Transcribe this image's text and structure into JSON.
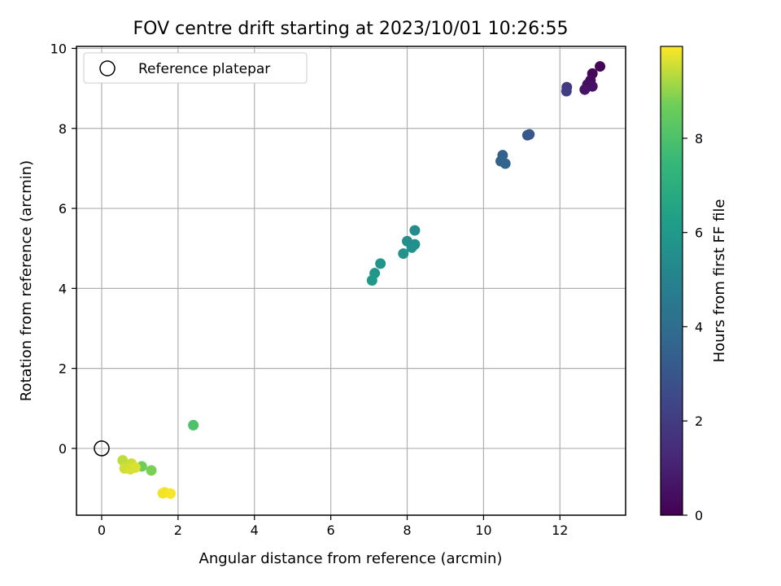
{
  "chart_data": {
    "type": "scatter",
    "title": "FOV centre drift starting at 2023/10/01 10:26:55",
    "xlabel": "Angular distance from reference (arcmin)",
    "ylabel": "Rotation from reference (arcmin)",
    "xlim": [
      -0.66,
      13.72
    ],
    "ylim": [
      -1.67,
      10.05
    ],
    "x_ticks": [
      0,
      2,
      4,
      6,
      8,
      10,
      12
    ],
    "y_ticks": [
      0,
      2,
      4,
      6,
      8,
      10
    ],
    "x_tick_labels": [
      "0",
      "2",
      "4",
      "6",
      "8",
      "10",
      "12"
    ],
    "y_tick_labels": [
      "0",
      "2",
      "4",
      "6",
      "8",
      "10"
    ],
    "grid": true,
    "legend": {
      "position": "top-left",
      "entries": [
        "Reference platepar"
      ]
    },
    "reference_point": {
      "x": 0,
      "y": 0
    },
    "colorbar": {
      "label": "Hours from first FF file",
      "colormap": "viridis",
      "range": [
        0,
        9.95
      ],
      "ticks": [
        0,
        2,
        4,
        6,
        8
      ],
      "tick_labels": [
        "0",
        "2",
        "4",
        "6",
        "8"
      ]
    },
    "points": [
      {
        "x": 13.05,
        "y": 9.55,
        "hours": 0.1
      },
      {
        "x": 12.85,
        "y": 9.37,
        "hours": 0.2
      },
      {
        "x": 12.8,
        "y": 9.2,
        "hours": 0.3
      },
      {
        "x": 12.72,
        "y": 9.1,
        "hours": 0.4
      },
      {
        "x": 12.85,
        "y": 9.05,
        "hours": 0.5
      },
      {
        "x": 12.65,
        "y": 8.97,
        "hours": 0.6
      },
      {
        "x": 12.18,
        "y": 9.03,
        "hours": 1.9
      },
      {
        "x": 12.17,
        "y": 8.93,
        "hours": 2.0
      },
      {
        "x": 11.2,
        "y": 7.85,
        "hours": 3.0
      },
      {
        "x": 11.15,
        "y": 7.83,
        "hours": 3.1
      },
      {
        "x": 10.5,
        "y": 7.33,
        "hours": 3.4
      },
      {
        "x": 10.45,
        "y": 7.18,
        "hours": 3.5
      },
      {
        "x": 10.57,
        "y": 7.12,
        "hours": 3.6
      },
      {
        "x": 8.2,
        "y": 5.45,
        "hours": 5.4
      },
      {
        "x": 8.0,
        "y": 5.18,
        "hours": 5.5
      },
      {
        "x": 8.2,
        "y": 5.1,
        "hours": 5.55
      },
      {
        "x": 8.12,
        "y": 5.02,
        "hours": 5.6
      },
      {
        "x": 7.9,
        "y": 4.87,
        "hours": 5.7
      },
      {
        "x": 7.3,
        "y": 4.62,
        "hours": 5.8
      },
      {
        "x": 7.15,
        "y": 4.38,
        "hours": 5.9
      },
      {
        "x": 7.08,
        "y": 4.2,
        "hours": 6.0
      },
      {
        "x": 2.4,
        "y": 0.58,
        "hours": 8.0
      },
      {
        "x": 1.05,
        "y": -0.45,
        "hours": 8.7
      },
      {
        "x": 1.3,
        "y": -0.55,
        "hours": 8.8
      },
      {
        "x": 0.55,
        "y": -0.3,
        "hours": 9.4
      },
      {
        "x": 0.78,
        "y": -0.38,
        "hours": 9.5
      },
      {
        "x": 0.6,
        "y": -0.5,
        "hours": 9.55
      },
      {
        "x": 0.75,
        "y": -0.52,
        "hours": 9.6
      },
      {
        "x": 0.88,
        "y": -0.48,
        "hours": 9.65
      },
      {
        "x": 1.65,
        "y": -1.1,
        "hours": 9.8
      },
      {
        "x": 1.6,
        "y": -1.12,
        "hours": 9.85
      },
      {
        "x": 1.8,
        "y": -1.13,
        "hours": 9.9
      }
    ]
  },
  "colors": {
    "grid": "#b0b0b0",
    "axes": "#000000",
    "reference_marker": "#000000"
  }
}
